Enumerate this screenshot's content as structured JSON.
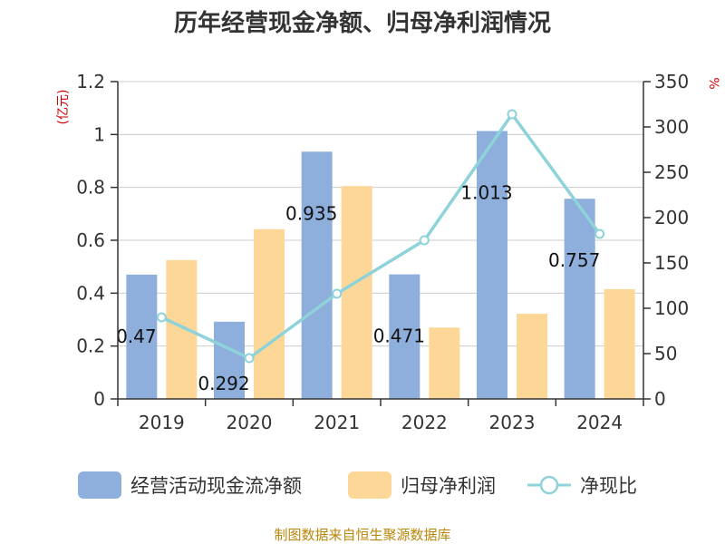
{
  "chart_data": {
    "type": "bar",
    "title": "历年经营现金净额、归母净利润情况",
    "categories": [
      "2019",
      "2020",
      "2021",
      "2022",
      "2023",
      "2024"
    ],
    "series": [
      {
        "name": "经营活动现金流净额",
        "type": "bar",
        "axis": "left",
        "color": "#8eaedc",
        "values": [
          0.47,
          0.292,
          0.935,
          0.471,
          1.013,
          0.757
        ]
      },
      {
        "name": "归母净利润",
        "type": "bar",
        "axis": "left",
        "color": "#fdd797",
        "values": [
          0.525,
          0.642,
          0.805,
          0.27,
          0.322,
          0.415
        ]
      },
      {
        "name": "净现比",
        "type": "line",
        "axis": "right",
        "color": "#8dd3d9",
        "values": [
          90,
          45,
          116,
          175,
          314,
          182
        ]
      }
    ],
    "data_labels": [
      "0.47",
      "0.292",
      "0.935",
      "0.471",
      "1.013",
      "0.757"
    ],
    "left_axis": {
      "unit": "(亿元)",
      "ylim": [
        0,
        1.2
      ],
      "ticks": [
        "0",
        "0.2",
        "0.4",
        "0.6",
        "0.8",
        "1",
        "1.2"
      ]
    },
    "right_axis": {
      "unit": "%",
      "ylim": [
        0,
        350
      ],
      "ticks": [
        "0",
        "50",
        "100",
        "150",
        "200",
        "250",
        "300",
        "350"
      ]
    },
    "grid": true,
    "legend_position": "bottom",
    "source": "制图数据来自恒生聚源数据库"
  }
}
